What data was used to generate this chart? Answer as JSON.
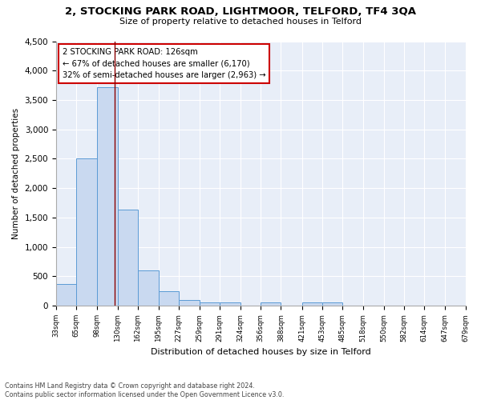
{
  "title1": "2, STOCKING PARK ROAD, LIGHTMOOR, TELFORD, TF4 3QA",
  "title2": "Size of property relative to detached houses in Telford",
  "xlabel": "Distribution of detached houses by size in Telford",
  "ylabel": "Number of detached properties",
  "footnote": "Contains HM Land Registry data © Crown copyright and database right 2024.\nContains public sector information licensed under the Open Government Licence v3.0.",
  "bar_edges": [
    33,
    65,
    98,
    130,
    162,
    195,
    227,
    259,
    291,
    324,
    356,
    388,
    421,
    453,
    485,
    518,
    550,
    582,
    614,
    647,
    679
  ],
  "bar_heights": [
    370,
    2510,
    3720,
    1630,
    600,
    240,
    100,
    60,
    50,
    0,
    50,
    0,
    60,
    50,
    0,
    0,
    0,
    0,
    0,
    0
  ],
  "bar_color": "#c9d9f0",
  "bar_edge_color": "#5b9bd5",
  "vline_x": 126,
  "vline_color": "#8b0000",
  "annotation_line1": "2 STOCKING PARK ROAD: 126sqm",
  "annotation_line2": "← 67% of detached houses are smaller (6,170)",
  "annotation_line3": "32% of semi-detached houses are larger (2,963) →",
  "ylim": [
    0,
    4500
  ],
  "yticks": [
    0,
    500,
    1000,
    1500,
    2000,
    2500,
    3000,
    3500,
    4000,
    4500
  ],
  "plot_bg_color": "#e8eef8",
  "grid_color": "#ffffff",
  "tick_labels": [
    "33sqm",
    "65sqm",
    "98sqm",
    "130sqm",
    "162sqm",
    "195sqm",
    "227sqm",
    "259sqm",
    "291sqm",
    "324sqm",
    "356sqm",
    "388sqm",
    "421sqm",
    "453sqm",
    "485sqm",
    "518sqm",
    "550sqm",
    "582sqm",
    "614sqm",
    "647sqm",
    "679sqm"
  ]
}
